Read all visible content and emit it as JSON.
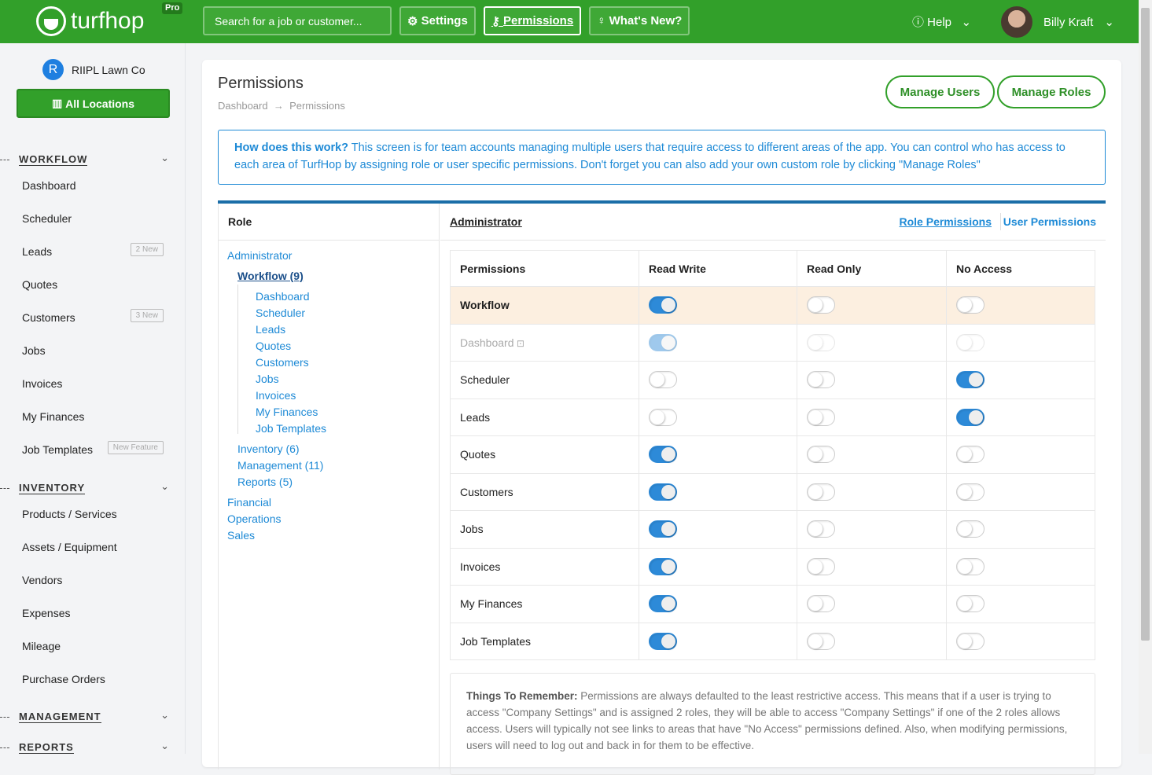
{
  "header": {
    "logo": "turfhop",
    "pro_badge": "Pro",
    "search_placeholder": "Search for a job or customer...",
    "settings": "Settings",
    "permissions": "Permissions",
    "whats_new": "What's New?",
    "help": "Help",
    "user_name": "Billy Kraft",
    "brand_color": "#32a02a"
  },
  "sidebar": {
    "org_initial": "R",
    "org_name": "RIIPL Lawn Co",
    "all_locations": "All Locations",
    "sections": [
      {
        "label": "WORKFLOW",
        "items": [
          {
            "label": "Dashboard"
          },
          {
            "label": "Scheduler"
          },
          {
            "label": "Leads",
            "badge": "2 New"
          },
          {
            "label": "Quotes"
          },
          {
            "label": "Customers",
            "badge": "3 New"
          },
          {
            "label": "Jobs"
          },
          {
            "label": "Invoices"
          },
          {
            "label": "My Finances"
          },
          {
            "label": "Job Templates",
            "badge": "New Feature"
          }
        ]
      },
      {
        "label": "INVENTORY",
        "items": [
          {
            "label": "Products / Services"
          },
          {
            "label": "Assets / Equipment"
          },
          {
            "label": "Vendors"
          },
          {
            "label": "Expenses"
          },
          {
            "label": "Mileage"
          },
          {
            "label": "Purchase Orders"
          }
        ]
      },
      {
        "label": "MANAGEMENT",
        "items": []
      },
      {
        "label": "REPORTS",
        "items": []
      }
    ]
  },
  "page": {
    "title": "Permissions",
    "breadcrumb": [
      "Dashboard",
      "Permissions"
    ],
    "manage_users": "Manage Users",
    "manage_roles": "Manage Roles",
    "info_lead": "How does this work?",
    "info_text": " This screen is for team accounts managing multiple users that require access to different areas of the app. You can control who has access to each area of TurfHop by assigning role or user specific permissions. Don't forget you can also add your own custom role by clicking \"Manage Roles\""
  },
  "roles": {
    "header": "Role",
    "tree": [
      {
        "label": "Administrator",
        "level": 0
      },
      {
        "label": "Workflow (9)",
        "level": 1,
        "active": true
      },
      {
        "label": "Dashboard",
        "level": 2
      },
      {
        "label": "Scheduler",
        "level": 2
      },
      {
        "label": "Leads",
        "level": 2
      },
      {
        "label": "Quotes",
        "level": 2
      },
      {
        "label": "Customers",
        "level": 2
      },
      {
        "label": "Jobs",
        "level": 2
      },
      {
        "label": "Invoices",
        "level": 2
      },
      {
        "label": "My Finances",
        "level": 2
      },
      {
        "label": "Job Templates",
        "level": 2
      },
      {
        "label": "Inventory (6)",
        "level": 1
      },
      {
        "label": "Management (11)",
        "level": 1
      },
      {
        "label": "Reports (5)",
        "level": 1
      },
      {
        "label": "Financial",
        "level": 0
      },
      {
        "label": "Operations",
        "level": 0
      },
      {
        "label": "Sales",
        "level": 0
      }
    ]
  },
  "permissions": {
    "role": "Administrator",
    "role_permissions": "Role Permissions",
    "user_permissions": "User Permissions",
    "columns": [
      "Permissions",
      "Read Write",
      "Read Only",
      "No Access"
    ],
    "rows": [
      {
        "name": "Workflow",
        "value": "Read Write",
        "highlight": true
      },
      {
        "name": "Dashboard",
        "value": "Read Write",
        "locked": true
      },
      {
        "name": "Scheduler",
        "value": "No Access"
      },
      {
        "name": "Leads",
        "value": "No Access"
      },
      {
        "name": "Quotes",
        "value": "Read Write"
      },
      {
        "name": "Customers",
        "value": "Read Write"
      },
      {
        "name": "Jobs",
        "value": "Read Write"
      },
      {
        "name": "Invoices",
        "value": "Read Write"
      },
      {
        "name": "My Finances",
        "value": "Read Write"
      },
      {
        "name": "Job Templates",
        "value": "Read Write"
      }
    ]
  },
  "note": {
    "lead": "Things To Remember:",
    "text": " Permissions are always defaulted to the least restrictive access. This means that if a user is trying to access \"Company Settings\" and is assigned 2 roles, they will be able to access \"Company Settings\" if one of the 2 roles allows access. Users will typically not see links to areas that have \"No Access\" permissions defined. Also, when modifying permissions, users will need to log out and back in for them to be effective."
  }
}
